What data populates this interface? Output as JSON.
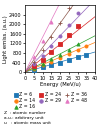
{
  "chart_data": {
    "type": "scatter",
    "xlabel": "Energy (MeV/u)",
    "ylabel": "Light emiss. (a.u.)",
    "xlim": [
      0,
      40
    ],
    "ylim": [
      0,
      2800
    ],
    "xticks": [
      0,
      5,
      10,
      15,
      20,
      25,
      30,
      35,
      40
    ],
    "yticks": [
      0,
      400,
      800,
      1200,
      1600,
      2000,
      2400
    ],
    "grid": false,
    "legend": "upper center",
    "series": [
      {
        "name": "Z = 6",
        "marker": "square",
        "slope": 21,
        "x": [
          5,
          10,
          15,
          20,
          25,
          30,
          35
        ],
        "values": [
          95,
          195,
          300,
          400,
          505,
          620,
          730
        ]
      },
      {
        "name": "Z = 14",
        "marker": "circle",
        "slope": 31,
        "x": [
          5,
          10,
          15,
          20,
          25,
          30,
          35
        ],
        "values": [
          135,
          280,
          440,
          600,
          765,
          940,
          1110
        ]
      },
      {
        "name": "Z = 16",
        "marker": "triangle",
        "slope": 38,
        "x": [
          5,
          10,
          15,
          20,
          25,
          30
        ],
        "values": [
          160,
          335,
          530,
          730,
          940,
          1160
        ]
      },
      {
        "name": "Z = 24",
        "marker": "square",
        "slope": 58,
        "x": [
          5,
          10,
          15,
          20,
          25,
          30
        ],
        "values": [
          245,
          525,
          840,
          1185,
          1545,
          1910
        ]
      },
      {
        "name": "Z = 29",
        "marker": "circle",
        "slope": 76,
        "x": [
          5,
          10,
          15,
          20,
          25,
          30
        ],
        "values": [
          320,
          680,
          1090,
          1530,
          1990,
          2470
        ]
      },
      {
        "name": "Z = 36",
        "marker": "plus",
        "slope": 102,
        "x": [
          5,
          10,
          15,
          20,
          25
        ],
        "values": [
          430,
          910,
          1470,
          2070,
          2700
        ]
      },
      {
        "name": "Z = 48",
        "marker": "triangle",
        "slope": 145,
        "x": [
          5,
          10,
          15
        ],
        "values": [
          610,
          1300,
          2100
        ]
      }
    ],
    "annotations": [
      "Z  : atomic number",
      "a.u.: arbitrary unit",
      "u   : atomic mass unit"
    ]
  }
}
